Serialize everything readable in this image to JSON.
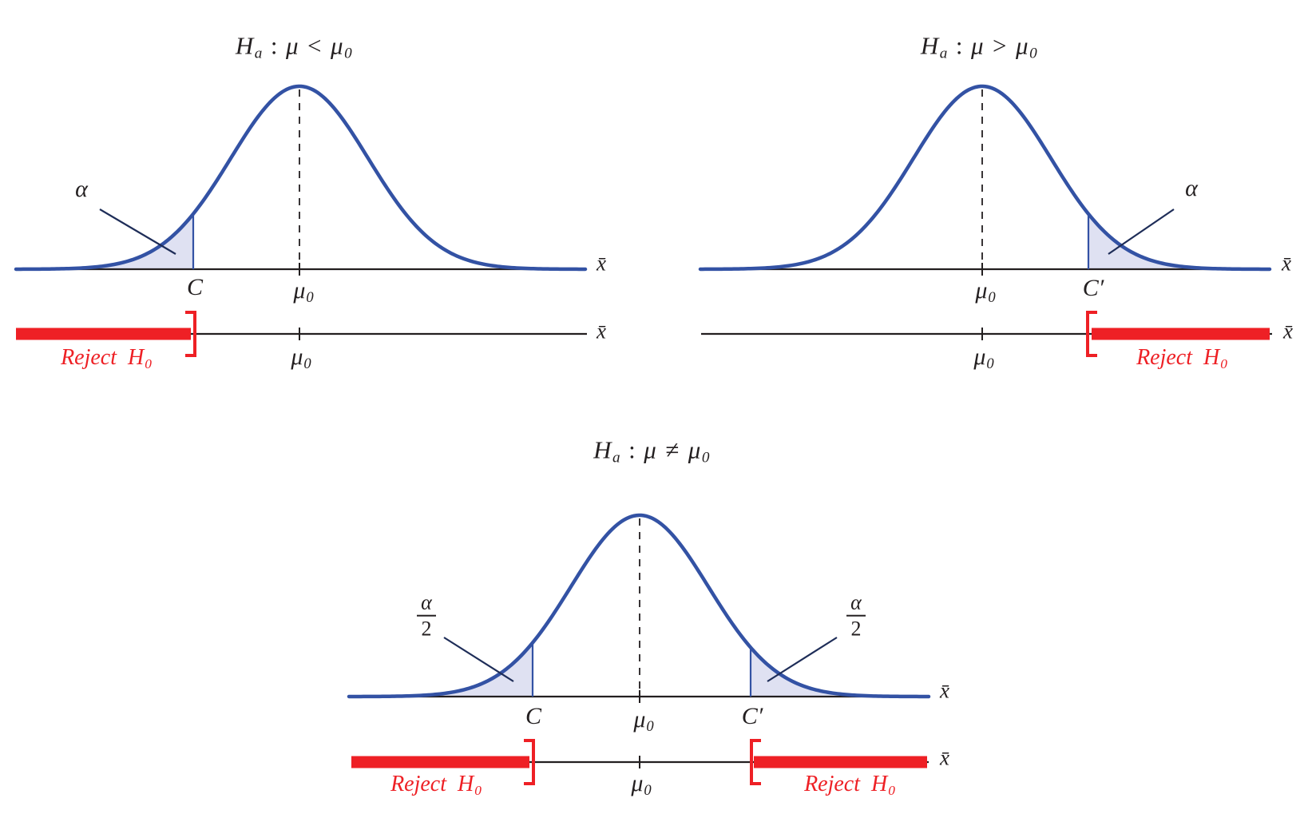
{
  "colors": {
    "curve_blue": "#3352a4",
    "tail_shade": "#dfe1f2",
    "reject_red": "#ee2025",
    "ink": "#231f20"
  },
  "panels": {
    "lower": {
      "title": {
        "h": "H",
        "h_sub": "a",
        "colon": ":",
        "mu": "μ",
        "op": "<",
        "mu2": "μ",
        "mu2_sub": "0"
      },
      "alpha": "α",
      "c_label": "C",
      "mu0": "μ",
      "mu0_sub": "0",
      "xbar_axis": "x̄",
      "line_mu0": "μ",
      "line_mu0_sub": "0",
      "xbar_line": "x̄",
      "reject": {
        "word": "Reject",
        "h": "H",
        "h_sub": "0"
      }
    },
    "upper": {
      "title": {
        "h": "H",
        "h_sub": "a",
        "colon": ":",
        "mu": "μ",
        "op": ">",
        "mu2": "μ",
        "mu2_sub": "0"
      },
      "alpha": "α",
      "c_label": "C′",
      "mu0": "μ",
      "mu0_sub": "0",
      "xbar_axis": "x̄",
      "line_mu0": "μ",
      "line_mu0_sub": "0",
      "xbar_line": "x̄",
      "reject": {
        "word": "Reject",
        "h": "H",
        "h_sub": "0"
      }
    },
    "two_sided": {
      "title": {
        "h": "H",
        "h_sub": "a",
        "colon": ":",
        "mu": "μ",
        "op": "≠",
        "mu2": "μ",
        "mu2_sub": "0"
      },
      "alpha_left": {
        "num": "α",
        "den": "2"
      },
      "alpha_right": {
        "num": "α",
        "den": "2"
      },
      "c_label": "C",
      "c_prime_label": "C′",
      "mu0": "μ",
      "mu0_sub": "0",
      "xbar_axis": "x̄",
      "line_mu0": "μ",
      "line_mu0_sub": "0",
      "xbar_line": "x̄",
      "reject_left": {
        "word": "Reject",
        "h": "H",
        "h_sub": "0"
      },
      "reject_right": {
        "word": "Reject",
        "h": "H",
        "h_sub": "0"
      }
    }
  }
}
